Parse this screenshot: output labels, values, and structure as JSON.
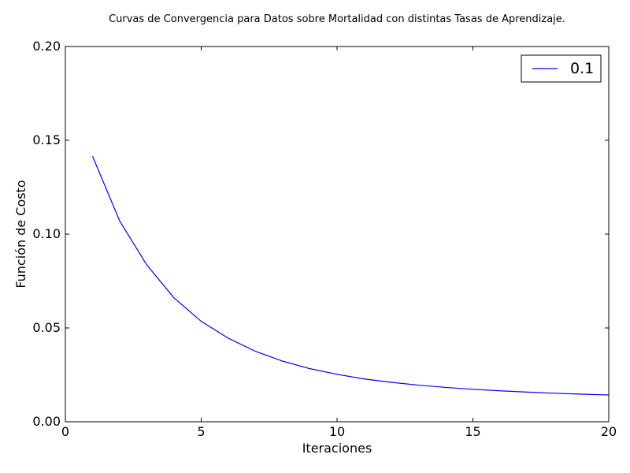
{
  "chart_data": {
    "type": "line",
    "title": "Curvas de Convergencia para Datos sobre Mortalidad con distintas Tasas de Aprendizaje.",
    "xlabel": "Iteraciones",
    "ylabel": "Función de Costo",
    "xlim": [
      0,
      20
    ],
    "ylim": [
      0,
      0.2
    ],
    "xticks": [
      0,
      5,
      10,
      15,
      20
    ],
    "xtick_labels": [
      "0",
      "5",
      "10",
      "15",
      "20"
    ],
    "yticks": [
      0,
      0.05,
      0.1,
      0.15,
      0.2
    ],
    "ytick_labels": [
      "0.00",
      "0.05",
      "0.10",
      "0.15",
      "0.20"
    ],
    "grid": false,
    "legend_position": "top-right",
    "series": [
      {
        "name": "0.1",
        "color": "#0000ff",
        "x": [
          1,
          2,
          3,
          4,
          5,
          6,
          7,
          8,
          9,
          10,
          11,
          12,
          13,
          14,
          15,
          16,
          17,
          18,
          19,
          20
        ],
        "y": [
          0.1415,
          0.107,
          0.0835,
          0.066,
          0.0535,
          0.0445,
          0.0375,
          0.0323,
          0.0283,
          0.0253,
          0.0228,
          0.021,
          0.0195,
          0.0183,
          0.0173,
          0.0165,
          0.0158,
          0.0152,
          0.0147,
          0.0143
        ]
      }
    ]
  }
}
